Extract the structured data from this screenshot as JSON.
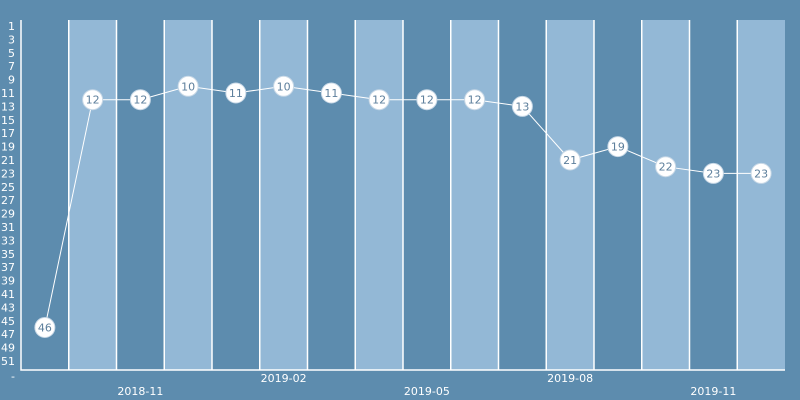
{
  "chart_data": {
    "type": "line",
    "title": "",
    "xlabel": "",
    "ylabel": "",
    "y_reversed": true,
    "ylim": [
      1,
      52
    ],
    "y_ticks": [
      1,
      3,
      5,
      7,
      9,
      11,
      13,
      15,
      17,
      19,
      21,
      23,
      25,
      27,
      29,
      31,
      33,
      35,
      37,
      39,
      41,
      43,
      45,
      47,
      49,
      51
    ],
    "y_bottom_tick": "-",
    "x_tick_labels": [
      {
        "index": 2,
        "label": "2018-11"
      },
      {
        "index": 5,
        "label": "2019-02"
      },
      {
        "index": 8,
        "label": "2019-05"
      },
      {
        "index": 11,
        "label": "2019-08"
      },
      {
        "index": 14,
        "label": "2019-11"
      }
    ],
    "series": [
      {
        "values": [
          46,
          12,
          12,
          10,
          11,
          10,
          11,
          12,
          12,
          12,
          13,
          21,
          19,
          22,
          23,
          23
        ]
      }
    ],
    "grid": false,
    "colors": {
      "background": "#5d8cae",
      "band_dark": "#5d8cae",
      "band_light": "#93b8d6",
      "line": "#ffffff",
      "marker_fill": "#ffffff",
      "marker_text": "#5d7f9c"
    }
  }
}
